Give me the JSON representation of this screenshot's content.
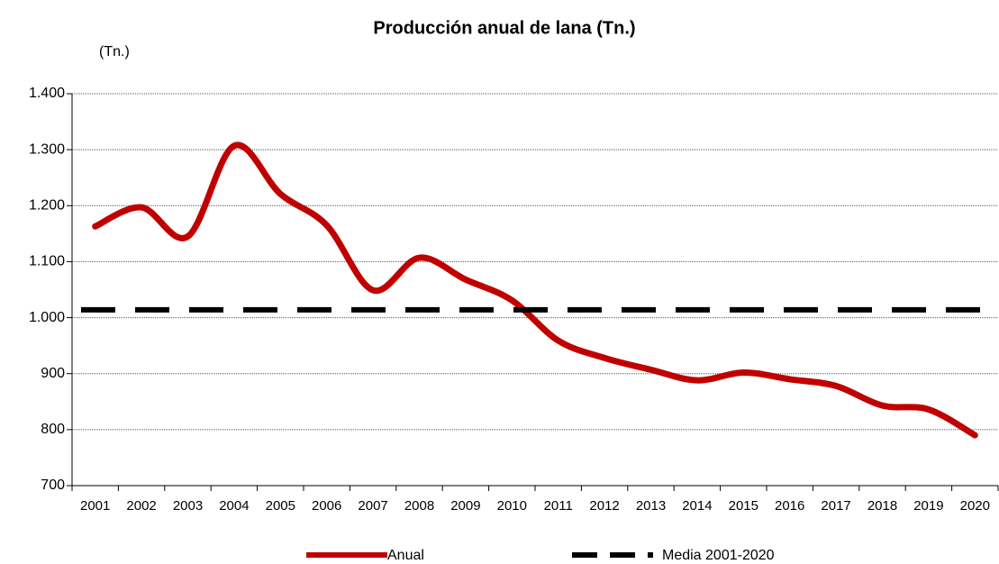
{
  "chart_data": {
    "type": "line",
    "title": "Producción anual de lana (Tn.)",
    "y_unit": "(Tn.)",
    "categories": [
      "2001",
      "2002",
      "2003",
      "2004",
      "2005",
      "2006",
      "2007",
      "2008",
      "2009",
      "2010",
      "2011",
      "2012",
      "2013",
      "2014",
      "2015",
      "2016",
      "2017",
      "2018",
      "2019",
      "2020"
    ],
    "series": [
      {
        "name": "Anual",
        "color": "#c00000",
        "dashed": false,
        "values": [
          1163,
          1197,
          1145,
          1307,
          1221,
          1165,
          1049,
          1107,
          1068,
          1031,
          959,
          928,
          907,
          888,
          902,
          890,
          878,
          843,
          836,
          790
        ]
      },
      {
        "name": "Media 2001-2020",
        "color": "#000000",
        "dashed": true,
        "values": [
          1014,
          1014,
          1014,
          1014,
          1014,
          1014,
          1014,
          1014,
          1014,
          1014,
          1014,
          1014,
          1014,
          1014,
          1014,
          1014,
          1014,
          1014,
          1014,
          1014
        ]
      }
    ],
    "ylim": [
      700,
      1400
    ],
    "yticks": [
      700,
      800,
      900,
      {
        "value": 1000,
        "label": "1.000"
      },
      {
        "value": 1100,
        "label": "1.100"
      },
      {
        "value": 1200,
        "label": "1.200"
      },
      {
        "value": 1300,
        "label": "1.300"
      },
      {
        "value": 1400,
        "label": "1.400"
      }
    ],
    "grid": true
  }
}
